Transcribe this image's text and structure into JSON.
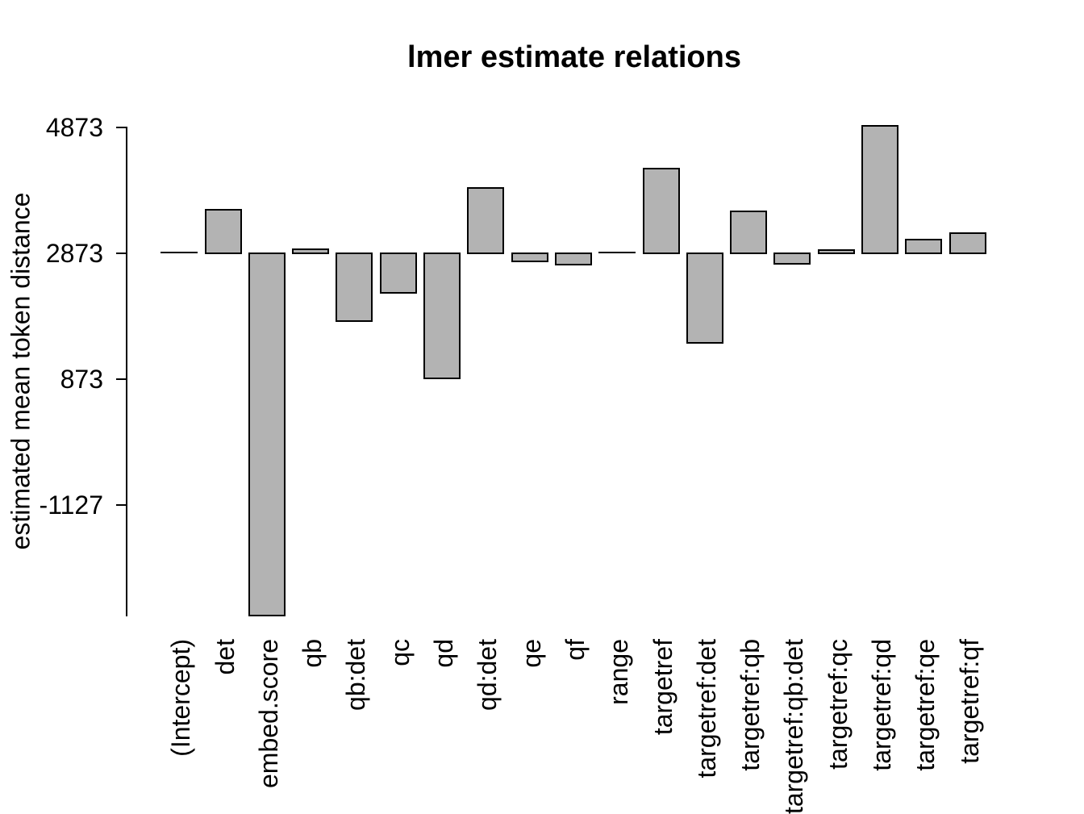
{
  "chart_data": {
    "type": "bar",
    "title": "lmer estimate relations",
    "ylabel": "estimated mean token distance",
    "xlabel": "",
    "categories": [
      "(Intercept)",
      "det",
      "embed.score",
      "qb",
      "qb:det",
      "qc",
      "qd",
      "qd:det",
      "qe",
      "qf",
      "range",
      "targetref",
      "targetref:det",
      "targetref:qb",
      "targetref:qb:det",
      "targetref:qc",
      "targetref:qd",
      "targetref:qe",
      "targetref:qf"
    ],
    "values": [
      2873,
      3565,
      -2885,
      2935,
      1800,
      2240,
      890,
      3910,
      2750,
      2695,
      2873,
      4220,
      1450,
      3545,
      2705,
      2920,
      4900,
      3090,
      3195
    ],
    "bar_baseline": 2873,
    "yticks": [
      4873,
      2873,
      873,
      -1127
    ],
    "ylim": [
      -2885,
      4900
    ],
    "grid": false,
    "legend": false,
    "bar_fill": "#b3b3b3",
    "bar_border": "#000000",
    "axis_color": "#000000"
  }
}
